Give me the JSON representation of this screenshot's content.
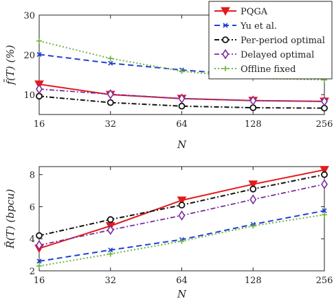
{
  "colors": {
    "PQGA": "#e31a1c",
    "Yu et al.": "#1f3fd6",
    "Per-period optimal": "#111111",
    "Delayed optimal": "#7a2c9e",
    "Offline fixed": "#6db33f"
  },
  "legend": {
    "placement": "top-right",
    "entries": [
      "PQGA",
      "Yu et al.",
      "Per-period optimal",
      "Delayed optimal",
      "Offline fixed"
    ]
  },
  "chart_data": [
    {
      "type": "line",
      "xlabel": "N",
      "ylabel": "f̄(T) (%)",
      "x": [
        16,
        32,
        64,
        128,
        256
      ],
      "xticks": [
        "16",
        "32",
        "64",
        "128",
        "256"
      ],
      "yticks": [
        "10",
        "20",
        "30"
      ],
      "xlim": [
        16,
        256
      ],
      "ylim": [
        5,
        30
      ],
      "xscale": "log2",
      "grid": false,
      "series": [
        {
          "name": "PQGA",
          "values": [
            12.6,
            10.0,
            9.0,
            8.5,
            8.3
          ]
        },
        {
          "name": "Yu et al.",
          "values": [
            20.1,
            17.9,
            16.2,
            14.8,
            14.5
          ]
        },
        {
          "name": "Per-period optimal",
          "values": [
            9.6,
            8.0,
            7.1,
            6.7,
            6.6
          ]
        },
        {
          "name": "Delayed optimal",
          "values": [
            11.4,
            10.1,
            9.0,
            8.5,
            8.3
          ]
        },
        {
          "name": "Offline fixed",
          "values": [
            23.5,
            19.1,
            15.9,
            14.1,
            13.7
          ]
        }
      ]
    },
    {
      "type": "line",
      "xlabel": "N",
      "ylabel": "R̄(T) (bpcu)",
      "x": [
        16,
        32,
        64,
        128,
        256
      ],
      "xticks": [
        "16",
        "32",
        "64",
        "128",
        "256"
      ],
      "yticks": [
        "2",
        "4",
        "6",
        "8"
      ],
      "xlim": [
        16,
        256
      ],
      "ylim": [
        2,
        8.5
      ],
      "xscale": "log2",
      "grid": false,
      "series": [
        {
          "name": "PQGA",
          "values": [
            3.4,
            4.8,
            6.4,
            7.4,
            8.3
          ]
        },
        {
          "name": "Yu et al.",
          "values": [
            2.6,
            3.3,
            3.95,
            4.9,
            5.75
          ]
        },
        {
          "name": "Per-period optimal",
          "values": [
            4.2,
            5.2,
            6.1,
            7.1,
            8.0
          ]
        },
        {
          "name": "Delayed optimal",
          "values": [
            3.6,
            4.55,
            5.45,
            6.45,
            7.4
          ]
        },
        {
          "name": "Offline fixed",
          "values": [
            2.3,
            3.05,
            3.85,
            4.8,
            5.5
          ]
        }
      ]
    }
  ]
}
